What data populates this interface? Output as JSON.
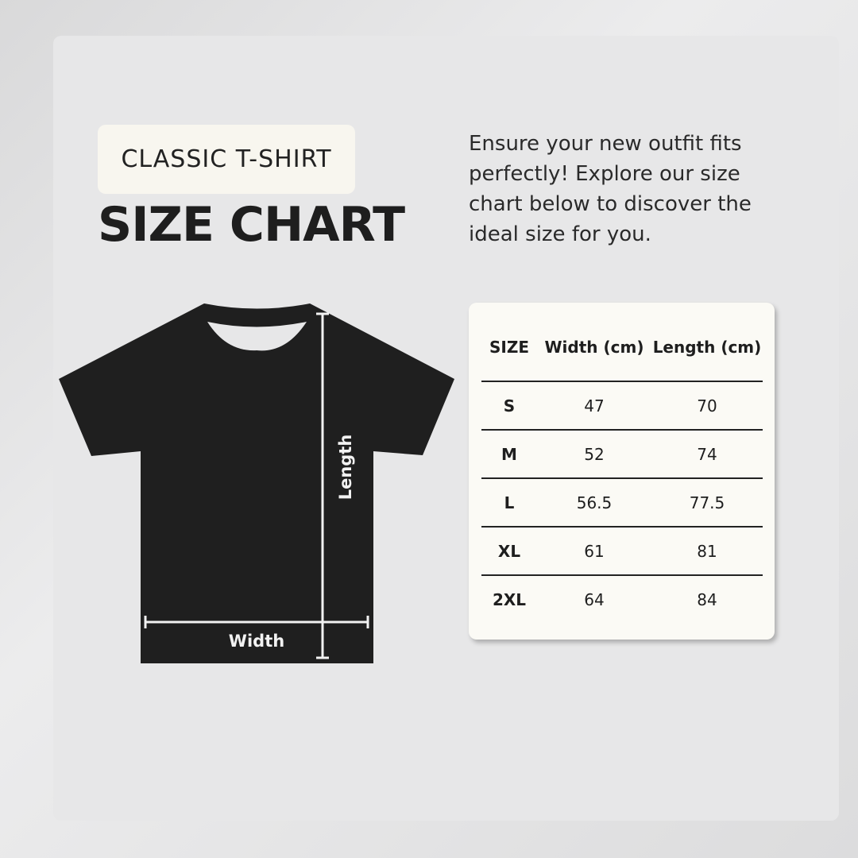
{
  "header": {
    "subtitle": "CLASSIC T-SHIRT",
    "title": "SIZE CHART"
  },
  "description": "Ensure your new outfit fits perfectly! Explore our size chart below to discover the ideal size for you.",
  "diagram": {
    "length_label": "Length",
    "width_label": "Width",
    "shirt_color": "#1f1f1f"
  },
  "table": {
    "headers": [
      "SIZE",
      "Width (cm)",
      "Length (cm)"
    ],
    "rows": [
      [
        "S",
        "47",
        "70"
      ],
      [
        "M",
        "52",
        "74"
      ],
      [
        "L",
        "56.5",
        "77.5"
      ],
      [
        "XL",
        "61",
        "81"
      ],
      [
        "2XL",
        "64",
        "84"
      ]
    ]
  }
}
